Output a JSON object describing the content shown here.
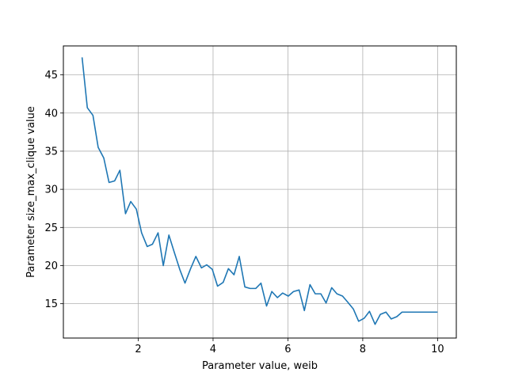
{
  "chart_data": {
    "type": "line",
    "title": "",
    "xlabel": "Parameter value, weib",
    "ylabel": "Parameter size_max_clique value",
    "xlim": [
      0.0,
      10.5
    ],
    "ylim": [
      10.5,
      48.8
    ],
    "xticks": [
      2,
      4,
      6,
      8,
      10
    ],
    "yticks": [
      15,
      20,
      25,
      30,
      35,
      40,
      45
    ],
    "grid": true,
    "colors": {
      "line": "#1f77b4",
      "grid": "#b0b0b0",
      "axes": "#000000"
    },
    "series": [
      {
        "x": [
          0.5,
          0.64,
          0.79,
          0.93,
          1.08,
          1.22,
          1.37,
          1.51,
          1.66,
          1.8,
          1.95,
          2.09,
          2.24,
          2.38,
          2.53,
          2.67,
          2.82,
          2.96,
          3.11,
          3.25,
          3.4,
          3.54,
          3.69,
          3.83,
          3.98,
          4.12,
          4.27,
          4.41,
          4.56,
          4.7,
          4.85,
          4.99,
          5.14,
          5.28,
          5.43,
          5.57,
          5.72,
          5.86,
          6.01,
          6.15,
          6.3,
          6.44,
          6.59,
          6.73,
          6.88,
          7.02,
          7.17,
          7.31,
          7.46,
          7.6,
          7.75,
          7.89,
          8.04,
          8.18,
          8.33,
          8.47,
          8.62,
          8.76,
          8.91,
          9.05,
          9.2,
          9.34,
          9.49,
          9.63,
          9.78,
          9.92,
          10.0
        ],
        "y": [
          47.3,
          40.7,
          39.7,
          35.5,
          34.1,
          30.9,
          31.1,
          32.5,
          26.8,
          28.4,
          27.4,
          24.3,
          22.5,
          22.8,
          24.3,
          20.0,
          24.0,
          21.8,
          19.5,
          17.7,
          19.6,
          21.2,
          19.7,
          20.1,
          19.5,
          17.3,
          17.8,
          19.6,
          18.8,
          21.2,
          17.2,
          17.0,
          17.0,
          17.7,
          14.7,
          16.6,
          15.8,
          16.4,
          16.0,
          16.6,
          16.8,
          14.1,
          17.5,
          16.3,
          16.3,
          15.1,
          17.1,
          16.3,
          16.0,
          15.2,
          14.3,
          12.7,
          13.1,
          14.0,
          12.3,
          13.6,
          13.9,
          13.0,
          13.3,
          13.9,
          13.9,
          13.9,
          13.9,
          13.9,
          13.9,
          13.9,
          13.9
        ]
      }
    ]
  }
}
